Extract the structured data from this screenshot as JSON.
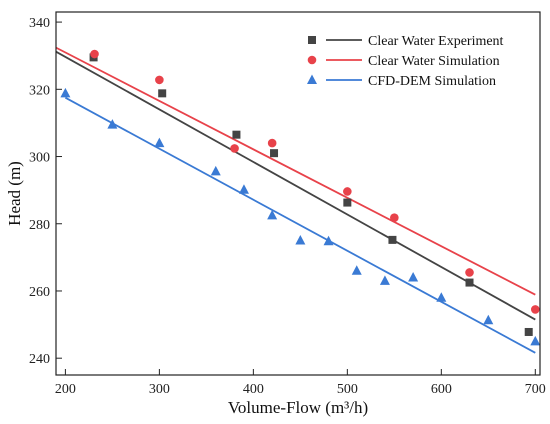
{
  "chart_data": {
    "type": "scatter",
    "xlabel": "Volume-Flow (m³/h)",
    "ylabel": "Head (m)",
    "xlim": [
      190,
      705
    ],
    "ylim": [
      235,
      343
    ],
    "xticks": [
      200,
      300,
      400,
      500,
      600,
      700
    ],
    "yticks": [
      240,
      260,
      280,
      300,
      320,
      340
    ],
    "legend_position": "top-right",
    "series": [
      {
        "name": "Clear Water Experiment",
        "marker": "square",
        "color": "#444444",
        "points": [
          [
            230,
            329.5
          ],
          [
            303,
            318.8
          ],
          [
            382,
            306.5
          ],
          [
            422,
            301.0
          ],
          [
            500,
            286.3
          ],
          [
            548,
            275.2
          ],
          [
            630,
            262.5
          ],
          [
            693,
            247.8
          ]
        ],
        "fit": [
          [
            190,
            331.2
          ],
          [
            700,
            251.5
          ]
        ]
      },
      {
        "name": "Clear Water Simulation",
        "marker": "circle",
        "color": "#e8424a",
        "points": [
          [
            231,
            330.5
          ],
          [
            300,
            322.8
          ],
          [
            380,
            302.4
          ],
          [
            420,
            304.0
          ],
          [
            500,
            289.6
          ],
          [
            550,
            281.8
          ],
          [
            630,
            265.5
          ],
          [
            700,
            254.5
          ]
        ],
        "fit": [
          [
            190,
            332.4
          ],
          [
            700,
            258.9
          ]
        ]
      },
      {
        "name": "CFD-DEM Simulation",
        "marker": "triangle",
        "color": "#3a7ad4",
        "points": [
          [
            200,
            318.8
          ],
          [
            250,
            309.5
          ],
          [
            300,
            304.0
          ],
          [
            360,
            295.6
          ],
          [
            390,
            290.1
          ],
          [
            420,
            282.5
          ],
          [
            450,
            275.0
          ],
          [
            480,
            274.8
          ],
          [
            510,
            266.0
          ],
          [
            540,
            263.0
          ],
          [
            570,
            264.0
          ],
          [
            600,
            258.0
          ],
          [
            650,
            251.3
          ],
          [
            700,
            245.0
          ]
        ],
        "fit": [
          [
            200,
            317.5
          ],
          [
            700,
            241.6
          ]
        ]
      }
    ]
  }
}
